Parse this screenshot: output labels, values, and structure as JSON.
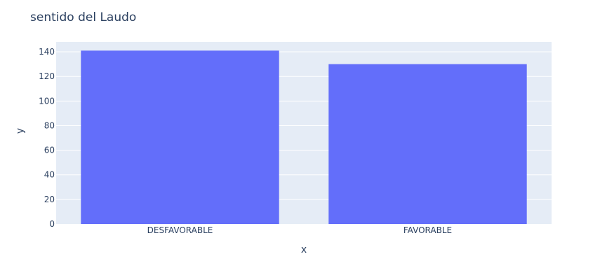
{
  "chart_data": {
    "type": "bar",
    "title": "sentido del Laudo",
    "xlabel": "x",
    "ylabel": "y",
    "categories": [
      "DESFAVORABLE",
      "FAVORABLE"
    ],
    "values": [
      141,
      130
    ],
    "ylim": [
      0,
      148
    ],
    "yticks": [
      0,
      20,
      40,
      60,
      80,
      100,
      120,
      140
    ],
    "grid": true,
    "legend": "none",
    "colors": {
      "bar": "#636efa",
      "plot_background": "#e5ecf6",
      "gridline": "#ffffff",
      "text": "#2a3f5f"
    }
  }
}
